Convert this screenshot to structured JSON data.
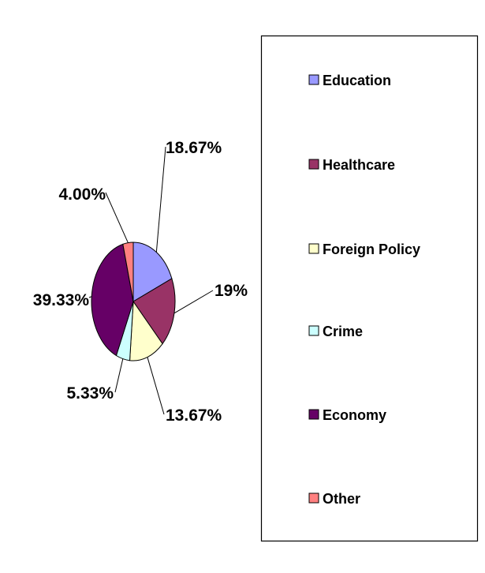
{
  "chart_data": {
    "type": "pie",
    "categories": [
      "Education",
      "Healthcare",
      "Foreign Policy",
      "Crime",
      "Economy",
      "Other"
    ],
    "values": [
      18.67,
      19,
      13.67,
      5.33,
      39.33,
      4.0
    ],
    "data_labels": [
      "18.67%",
      "19%",
      "13.67%",
      "5.33%",
      "39.33%",
      "4.00%"
    ],
    "colors": [
      "#9999ff",
      "#993366",
      "#ffffcc",
      "#ccffff",
      "#660066",
      "#ff8080"
    ],
    "legend": {
      "placement": "right",
      "entries": [
        "Education",
        "Healthcare",
        "Foreign Policy",
        "Crime",
        "Economy",
        "Other"
      ]
    },
    "title": ""
  }
}
